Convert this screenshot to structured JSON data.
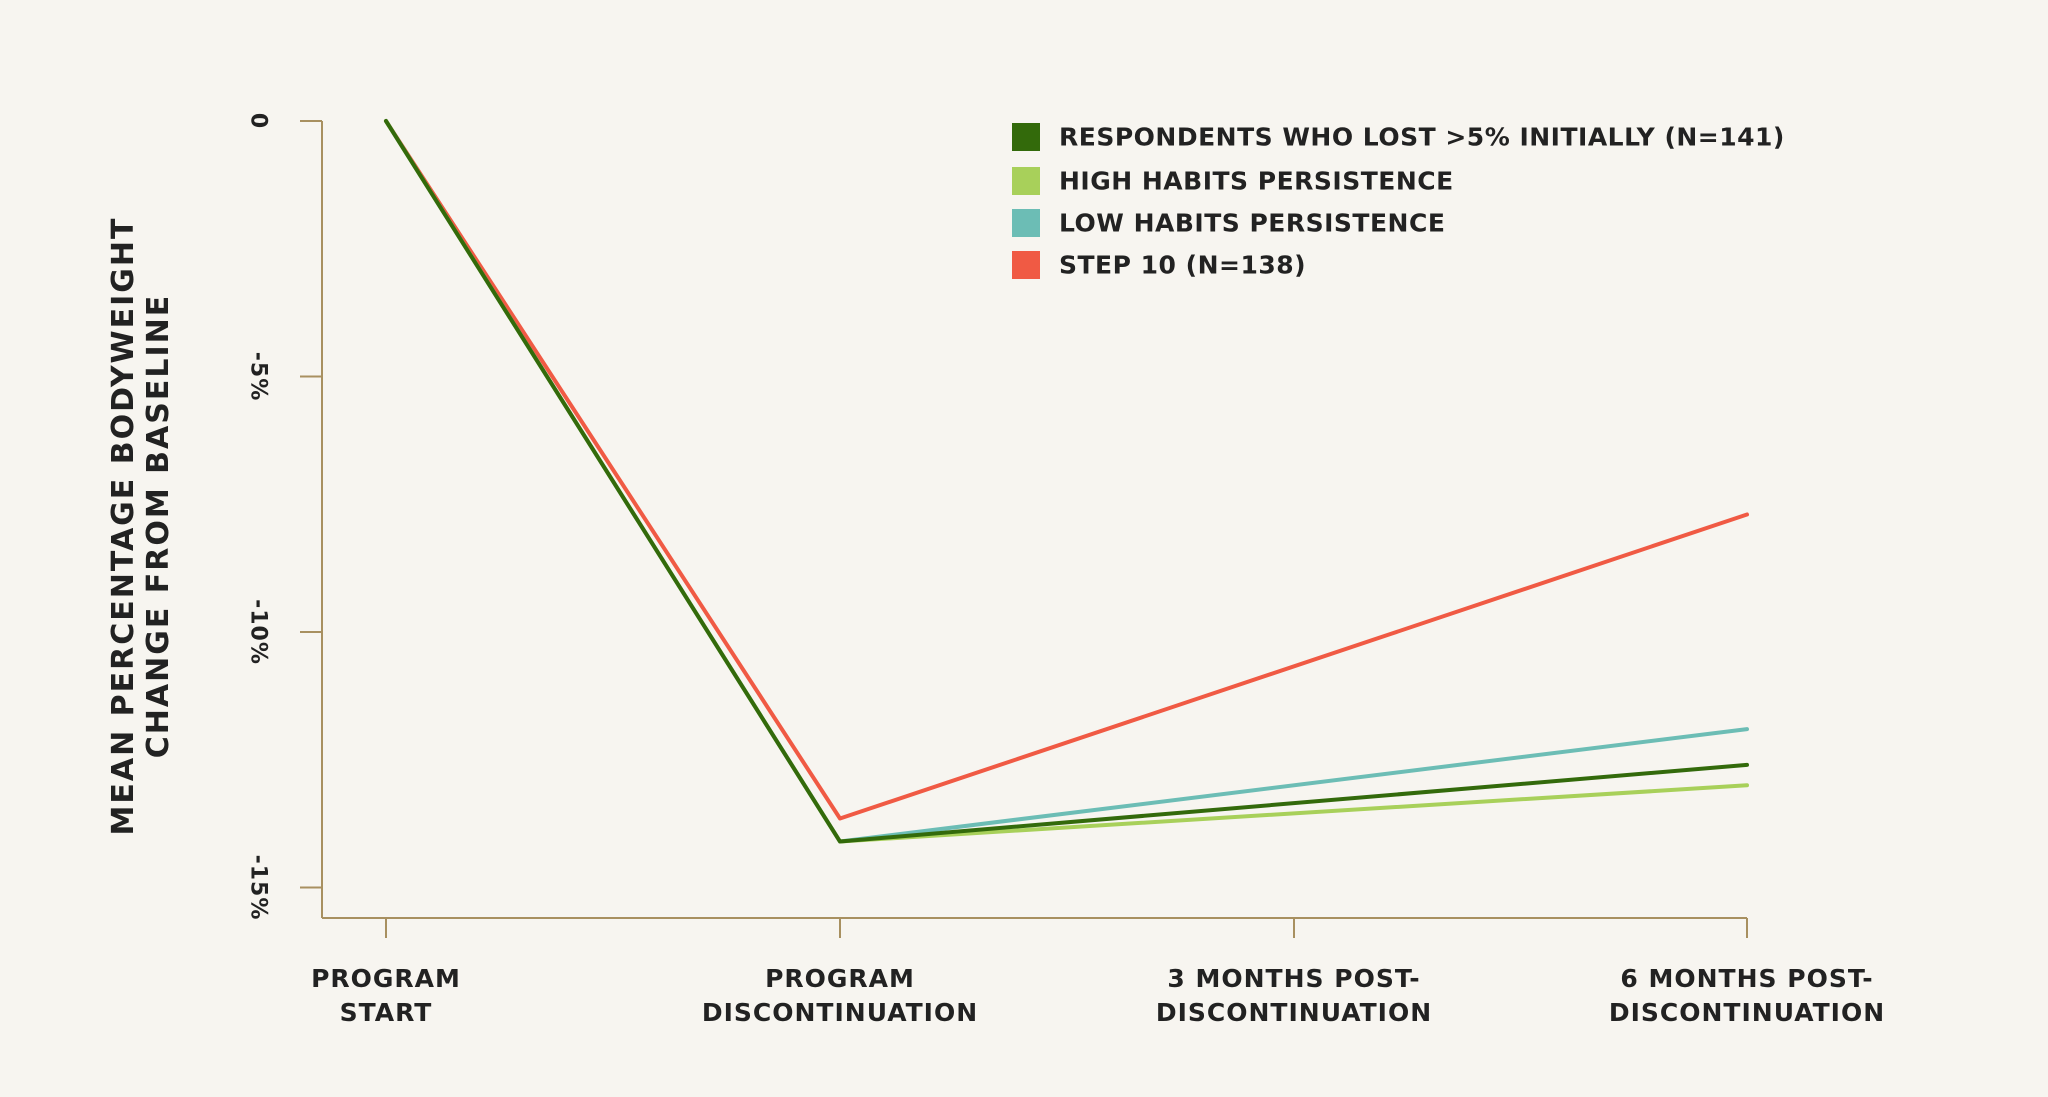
{
  "chart_data": {
    "type": "line",
    "title": "",
    "xlabel": "",
    "ylabel_lines": [
      "MEAN PERCENTAGE BODYWEIGHT",
      "CHANGE FROM BASELINE"
    ],
    "categories": [
      [
        "PROGRAM",
        "START"
      ],
      [
        "PROGRAM",
        "DISCONTINUATION"
      ],
      [
        "3 MONTHS POST-",
        "DISCONTINUATION"
      ],
      [
        "6 MONTHS POST-",
        "DISCONTINUATION"
      ]
    ],
    "yticks": [
      {
        "value": 0,
        "label": "0"
      },
      {
        "value": -5,
        "label": "-5%"
      },
      {
        "value": -10,
        "label": "-10%"
      },
      {
        "value": -15,
        "label": "-15%"
      }
    ],
    "ylim": [
      -15.6,
      0
    ],
    "grid": false,
    "legend_position": "top-right",
    "series": [
      {
        "name": "STEP 10 (N=138)",
        "color": "#f05a44",
        "values": [
          0,
          -13.65,
          null,
          -7.7
        ]
      },
      {
        "name": "LOW HABITS PERSISTENCE",
        "color": "#6cbdb5",
        "values": [
          0,
          -14.1,
          null,
          -11.9
        ]
      },
      {
        "name": "HIGH HABITS PERSISTENCE",
        "color": "#a8d05a",
        "values": [
          0,
          -14.1,
          null,
          -13.0
        ]
      },
      {
        "name": "RESPONDENTS WHO LOST >5% INITIALLY (N=141)",
        "color": "#336a0b",
        "values": [
          0,
          -14.1,
          null,
          -12.6
        ]
      }
    ],
    "legend_order": [
      3,
      2,
      1,
      0
    ],
    "axis_color": "#a89060"
  }
}
